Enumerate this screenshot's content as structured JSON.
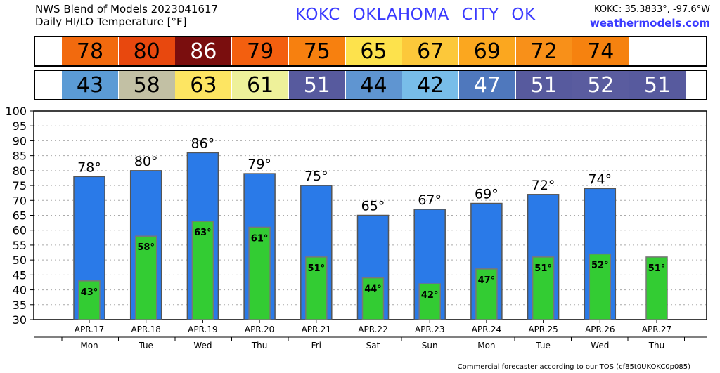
{
  "header": {
    "title_line1": "NWS Blend of Models 2023041617",
    "title_line2": "Daily HI/LO Temperature [°F]",
    "station": "KOKC   OKLAHOMA CITY   OK",
    "coords": "KOKC: 35.3833°, -97.6°W",
    "site": "weathermodels.com"
  },
  "hi_strip": [
    {
      "value": "78",
      "bg": "#f26a0e",
      "fg": "#000000"
    },
    {
      "value": "80",
      "bg": "#e8480e",
      "fg": "#000000"
    },
    {
      "value": "86",
      "bg": "#7a0e0e",
      "fg": "#ffffff"
    },
    {
      "value": "79",
      "bg": "#f35f0f",
      "fg": "#000000"
    },
    {
      "value": "75",
      "bg": "#f7800f",
      "fg": "#000000"
    },
    {
      "value": "65",
      "bg": "#fde24c",
      "fg": "#000000"
    },
    {
      "value": "67",
      "bg": "#fcc83a",
      "fg": "#000000"
    },
    {
      "value": "69",
      "bg": "#fba71f",
      "fg": "#000000"
    },
    {
      "value": "72",
      "bg": "#f89019",
      "fg": "#000000"
    },
    {
      "value": "74",
      "bg": "#f6820f",
      "fg": "#000000"
    }
  ],
  "lo_strip": [
    {
      "value": "43",
      "bg": "#5b9bd5",
      "fg": "#000000"
    },
    {
      "value": "58",
      "bg": "#c2c0a4",
      "fg": "#000000"
    },
    {
      "value": "63",
      "bg": "#fde562",
      "fg": "#000000"
    },
    {
      "value": "61",
      "bg": "#eef19a",
      "fg": "#000000"
    },
    {
      "value": "51",
      "bg": "#575a9e",
      "fg": "#ffffff"
    },
    {
      "value": "44",
      "bg": "#5f95d1",
      "fg": "#000000"
    },
    {
      "value": "42",
      "bg": "#78bde9",
      "fg": "#000000"
    },
    {
      "value": "47",
      "bg": "#4f78bd",
      "fg": "#ffffff"
    },
    {
      "value": "51",
      "bg": "#575a9e",
      "fg": "#ffffff"
    },
    {
      "value": "52",
      "bg": "#5a5c9f",
      "fg": "#ffffff"
    },
    {
      "value": "51",
      "bg": "#575a9e",
      "fg": "#ffffff"
    }
  ],
  "chart_data": {
    "type": "bar",
    "categories": [
      "APR.17",
      "APR.18",
      "APR.19",
      "APR.20",
      "APR.21",
      "APR.22",
      "APR.23",
      "APR.24",
      "APR.25",
      "APR.26",
      "APR.27"
    ],
    "weekdays": [
      "Mon",
      "Tue",
      "Wed",
      "Thu",
      "Fri",
      "Sat",
      "Sun",
      "Mon",
      "Tue",
      "Wed",
      "Thu"
    ],
    "series": [
      {
        "values": [
          78,
          80,
          86,
          79,
          75,
          65,
          67,
          69,
          72,
          74,
          null
        ],
        "color": "#2a7ae8"
      },
      {
        "values": [
          43,
          58,
          63,
          61,
          51,
          44,
          42,
          47,
          51,
          52,
          51
        ],
        "color": "#33cc33"
      }
    ],
    "hi_labels": [
      "78°",
      "80°",
      "86°",
      "79°",
      "75°",
      "65°",
      "67°",
      "69°",
      "72°",
      "74°",
      ""
    ],
    "lo_labels": [
      "43°",
      "58°",
      "63°",
      "61°",
      "51°",
      "44°",
      "42°",
      "47°",
      "51°",
      "52°",
      "51°"
    ],
    "y_ticks": [
      "30",
      "35",
      "40",
      "45",
      "50",
      "55",
      "60",
      "65",
      "70",
      "75",
      "80",
      "85",
      "90",
      "95",
      "100"
    ],
    "ylim": [
      30,
      100
    ],
    "grid": true
  },
  "footer": "Commercial forecaster according to our TOS (cf85t0UKOKC0p085)"
}
